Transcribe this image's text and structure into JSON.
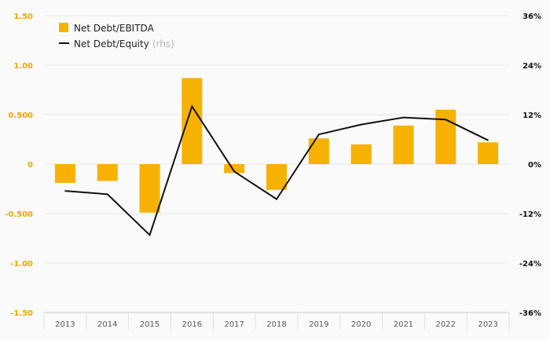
{
  "colors": {
    "bar": "#f7b100",
    "line": "#111111",
    "left_axis_text": "#f0a500",
    "right_axis_text": "#111111",
    "x_axis_text": "#555555",
    "grid": "#e6e6e6",
    "rhs_note": "#b5b5b5"
  },
  "legend": {
    "bar_label": "Net Debt/EBITDA",
    "line_label": "Net Debt/Equity",
    "line_suffix": "(rhs)"
  },
  "chart_data": {
    "type": "bar",
    "categories": [
      "2013",
      "2014",
      "2015",
      "2016",
      "2017",
      "2018",
      "2019",
      "2020",
      "2021",
      "2022",
      "2023"
    ],
    "series": [
      {
        "name": "Net Debt/EBITDA",
        "type": "bar",
        "axis": "left",
        "values": [
          -0.19,
          -0.17,
          -0.49,
          0.87,
          -0.09,
          -0.26,
          0.26,
          0.2,
          0.39,
          0.55,
          0.22
        ]
      },
      {
        "name": "Net Debt/Equity",
        "type": "line",
        "axis": "right",
        "values": [
          -6.5,
          -7.3,
          -17.2,
          14.0,
          -1.8,
          -8.5,
          7.2,
          9.6,
          11.3,
          10.8,
          5.8
        ]
      }
    ],
    "left_axis": {
      "ylim": [
        -1.5,
        1.5
      ],
      "ticks": [
        1.5,
        1.0,
        0.5,
        0,
        -0.5,
        -1.0,
        -1.5
      ],
      "tick_labels": [
        "1.50",
        "1.00",
        "0.500",
        "0",
        "-0.500",
        "-1.00",
        "-1.50"
      ]
    },
    "right_axis": {
      "ylim": [
        -36,
        36
      ],
      "ticks": [
        36,
        24,
        12,
        0,
        -12,
        -24,
        -36
      ],
      "tick_labels": [
        "36%",
        "24%",
        "12%",
        "0%",
        "-12%",
        "-24%",
        "-36%"
      ]
    },
    "grid": true,
    "legend_position": "top-left"
  }
}
